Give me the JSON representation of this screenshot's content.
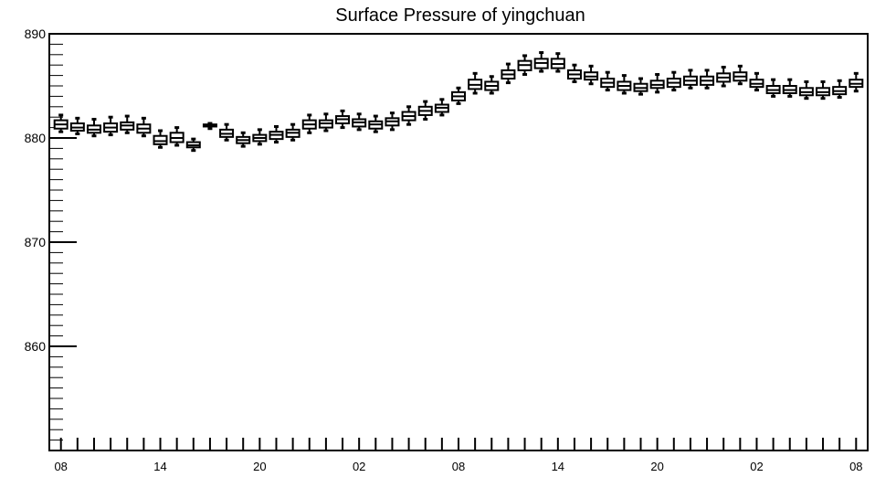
{
  "chart_data": {
    "type": "boxplot",
    "title": "Surface Pressure of yingchuan",
    "xlabel": "",
    "ylabel": "",
    "ylim": [
      850,
      890
    ],
    "y_ticks": [
      860,
      870,
      880,
      890
    ],
    "x_tick_labels": [
      "08",
      "14",
      "20",
      "02",
      "08",
      "14",
      "20",
      "02",
      "08"
    ],
    "x_tick_positions": [
      0,
      6,
      12,
      18,
      24,
      30,
      36,
      42,
      48
    ],
    "x_range": [
      -0.7,
      48.7
    ],
    "grid": false,
    "series": [
      {
        "values": [
          {
            "x": 0,
            "min": 880.6,
            "q1": 880.9,
            "median": 881.3,
            "q3": 881.7,
            "max": 882.2
          },
          {
            "x": 1,
            "min": 880.4,
            "q1": 880.7,
            "median": 881.0,
            "q3": 881.4,
            "max": 881.9
          },
          {
            "x": 2,
            "min": 880.2,
            "q1": 880.5,
            "median": 880.8,
            "q3": 881.2,
            "max": 881.8
          },
          {
            "x": 3,
            "min": 880.3,
            "q1": 880.6,
            "median": 881.0,
            "q3": 881.4,
            "max": 882.0
          },
          {
            "x": 4,
            "min": 880.5,
            "q1": 880.8,
            "median": 881.2,
            "q3": 881.5,
            "max": 882.1
          },
          {
            "x": 5,
            "min": 880.2,
            "q1": 880.5,
            "median": 880.9,
            "q3": 881.3,
            "max": 881.9
          },
          {
            "x": 6,
            "min": 879.1,
            "q1": 879.4,
            "median": 879.7,
            "q3": 880.2,
            "max": 880.7
          },
          {
            "x": 7,
            "min": 879.3,
            "q1": 879.6,
            "median": 880.0,
            "q3": 880.5,
            "max": 881.0
          },
          {
            "x": 8,
            "min": 878.8,
            "q1": 879.1,
            "median": 879.3,
            "q3": 879.6,
            "max": 879.9
          },
          {
            "x": 9,
            "min": 880.9,
            "q1": 881.1,
            "median": 881.2,
            "q3": 881.3,
            "max": 881.4
          },
          {
            "x": 10,
            "min": 879.8,
            "q1": 880.1,
            "median": 880.4,
            "q3": 880.8,
            "max": 881.3
          },
          {
            "x": 11,
            "min": 879.2,
            "q1": 879.5,
            "median": 879.8,
            "q3": 880.1,
            "max": 880.5
          },
          {
            "x": 12,
            "min": 879.4,
            "q1": 879.7,
            "median": 880.0,
            "q3": 880.3,
            "max": 880.8
          },
          {
            "x": 13,
            "min": 879.6,
            "q1": 879.9,
            "median": 880.3,
            "q3": 880.6,
            "max": 881.1
          },
          {
            "x": 14,
            "min": 879.8,
            "q1": 880.1,
            "median": 880.5,
            "q3": 880.8,
            "max": 881.3
          },
          {
            "x": 15,
            "min": 880.5,
            "q1": 880.9,
            "median": 881.3,
            "q3": 881.7,
            "max": 882.2
          },
          {
            "x": 16,
            "min": 880.7,
            "q1": 881.0,
            "median": 881.4,
            "q3": 881.7,
            "max": 882.3
          },
          {
            "x": 17,
            "min": 881.0,
            "q1": 881.4,
            "median": 881.8,
            "q3": 882.1,
            "max": 882.6
          },
          {
            "x": 18,
            "min": 880.8,
            "q1": 881.1,
            "median": 881.5,
            "q3": 881.8,
            "max": 882.3
          },
          {
            "x": 19,
            "min": 880.6,
            "q1": 880.9,
            "median": 881.3,
            "q3": 881.6,
            "max": 882.1
          },
          {
            "x": 20,
            "min": 880.8,
            "q1": 881.2,
            "median": 881.6,
            "q3": 881.9,
            "max": 882.4
          },
          {
            "x": 21,
            "min": 881.3,
            "q1": 881.7,
            "median": 882.1,
            "q3": 882.5,
            "max": 883.0
          },
          {
            "x": 22,
            "min": 881.8,
            "q1": 882.2,
            "median": 882.6,
            "q3": 883.0,
            "max": 883.5
          },
          {
            "x": 23,
            "min": 882.2,
            "q1": 882.5,
            "median": 882.9,
            "q3": 883.2,
            "max": 883.7
          },
          {
            "x": 24,
            "min": 883.3,
            "q1": 883.6,
            "median": 884.0,
            "q3": 884.4,
            "max": 884.8
          },
          {
            "x": 25,
            "min": 884.3,
            "q1": 884.7,
            "median": 885.1,
            "q3": 885.6,
            "max": 886.2
          },
          {
            "x": 26,
            "min": 884.3,
            "q1": 884.6,
            "median": 885.0,
            "q3": 885.4,
            "max": 885.9
          },
          {
            "x": 27,
            "min": 885.3,
            "q1": 885.7,
            "median": 886.1,
            "q3": 886.5,
            "max": 887.1
          },
          {
            "x": 28,
            "min": 886.1,
            "q1": 886.5,
            "median": 887.0,
            "q3": 887.4,
            "max": 887.9
          },
          {
            "x": 29,
            "min": 886.4,
            "q1": 886.7,
            "median": 887.2,
            "q3": 887.6,
            "max": 888.2
          },
          {
            "x": 30,
            "min": 886.4,
            "q1": 886.7,
            "median": 887.1,
            "q3": 887.6,
            "max": 888.1
          },
          {
            "x": 31,
            "min": 885.4,
            "q1": 885.7,
            "median": 886.1,
            "q3": 886.5,
            "max": 887.0
          },
          {
            "x": 32,
            "min": 885.2,
            "q1": 885.6,
            "median": 885.9,
            "q3": 886.3,
            "max": 886.9
          },
          {
            "x": 33,
            "min": 884.6,
            "q1": 884.9,
            "median": 885.3,
            "q3": 885.7,
            "max": 886.3
          },
          {
            "x": 34,
            "min": 884.3,
            "q1": 884.6,
            "median": 885.0,
            "q3": 885.4,
            "max": 886.0
          },
          {
            "x": 35,
            "min": 884.2,
            "q1": 884.5,
            "median": 884.8,
            "q3": 885.2,
            "max": 885.7
          },
          {
            "x": 36,
            "min": 884.4,
            "q1": 884.8,
            "median": 885.1,
            "q3": 885.5,
            "max": 886.1
          },
          {
            "x": 37,
            "min": 884.6,
            "q1": 884.9,
            "median": 885.3,
            "q3": 885.7,
            "max": 886.3
          },
          {
            "x": 38,
            "min": 884.8,
            "q1": 885.1,
            "median": 885.5,
            "q3": 885.9,
            "max": 886.5
          },
          {
            "x": 39,
            "min": 884.8,
            "q1": 885.1,
            "median": 885.5,
            "q3": 885.9,
            "max": 886.5
          },
          {
            "x": 40,
            "min": 885.0,
            "q1": 885.4,
            "median": 885.8,
            "q3": 886.2,
            "max": 886.8
          },
          {
            "x": 41,
            "min": 885.2,
            "q1": 885.5,
            "median": 885.9,
            "q3": 886.3,
            "max": 886.9
          },
          {
            "x": 42,
            "min": 884.6,
            "q1": 884.9,
            "median": 885.2,
            "q3": 885.6,
            "max": 886.2
          },
          {
            "x": 43,
            "min": 884.0,
            "q1": 884.3,
            "median": 884.6,
            "q3": 885.0,
            "max": 885.6
          },
          {
            "x": 44,
            "min": 884.0,
            "q1": 884.3,
            "median": 884.6,
            "q3": 885.0,
            "max": 885.6
          },
          {
            "x": 45,
            "min": 883.8,
            "q1": 884.1,
            "median": 884.4,
            "q3": 884.8,
            "max": 885.4
          },
          {
            "x": 46,
            "min": 883.8,
            "q1": 884.1,
            "median": 884.4,
            "q3": 884.8,
            "max": 885.4
          },
          {
            "x": 47,
            "min": 883.9,
            "q1": 884.2,
            "median": 884.5,
            "q3": 884.9,
            "max": 885.5
          },
          {
            "x": 48,
            "min": 884.5,
            "q1": 884.9,
            "median": 885.2,
            "q3": 885.6,
            "max": 886.2
          }
        ]
      }
    ]
  }
}
